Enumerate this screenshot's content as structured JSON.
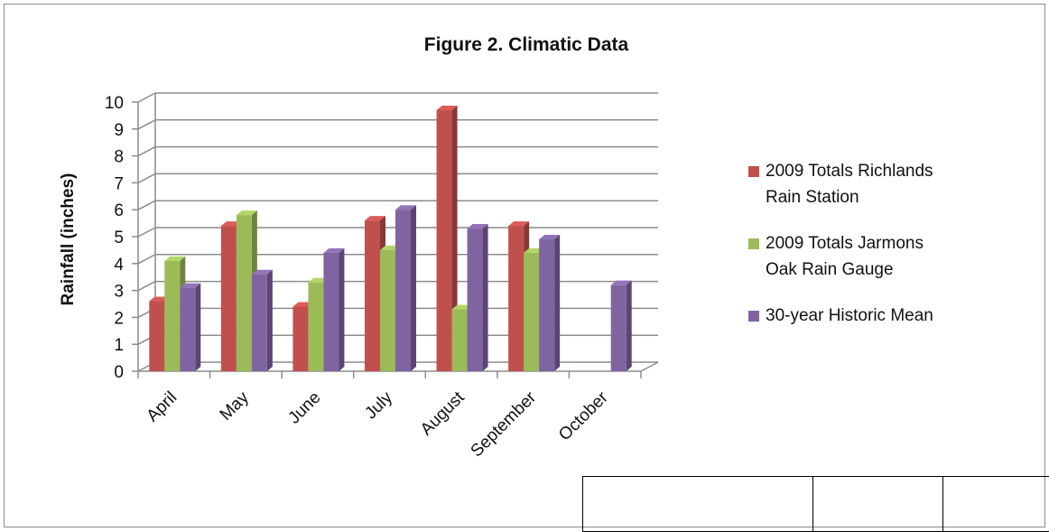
{
  "chart_data": {
    "type": "bar",
    "title": "Figure 2.  Climatic Data",
    "xlabel": "",
    "ylabel": "Rainfall (inches)",
    "ylim": [
      0,
      10
    ],
    "yticks": [
      "0",
      "1",
      "2",
      "3",
      "4",
      "5",
      "6",
      "7",
      "8",
      "9",
      "10"
    ],
    "grid": true,
    "legend_position": "right",
    "categories": [
      "April",
      "May",
      "June",
      "July",
      "August",
      "September",
      "October"
    ],
    "series": [
      {
        "name": "2009 Totals Richlands Rain Station",
        "color": "#c0504d",
        "values": [
          2.6,
          5.4,
          2.4,
          5.6,
          9.7,
          5.4,
          null
        ]
      },
      {
        "name": "2009 Totals Jarmons Oak Rain Gauge",
        "color": "#9bbb59",
        "values": [
          4.1,
          5.8,
          3.3,
          4.5,
          2.3,
          4.4,
          null
        ]
      },
      {
        "name": "30-year Historic Mean",
        "color": "#8064a2",
        "values": [
          3.1,
          3.6,
          4.4,
          6.0,
          5.3,
          4.9,
          3.2
        ]
      }
    ],
    "legend": [
      {
        "lines": [
          "2009 Totals Richlands",
          "Rain Station"
        ]
      },
      {
        "lines": [
          "2009 Totals Jarmons",
          "Oak Rain Gauge"
        ]
      },
      {
        "lines": [
          "30-year Historic Mean"
        ]
      }
    ]
  }
}
